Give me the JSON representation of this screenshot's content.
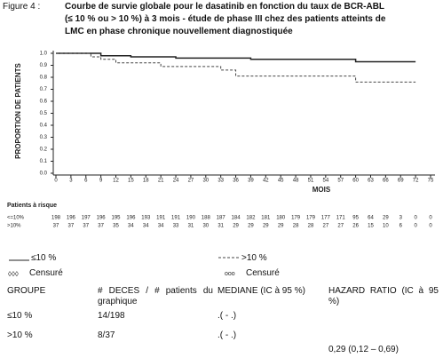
{
  "figure": {
    "label": "Figure 4 :",
    "caption": [
      "Courbe de survie globale pour le dasatinib en fonction du taux de BCR-ABL",
      "(≤ 10 % ou > 10 %) à 3 mois - étude de phase III chez des patients atteints de",
      "LMC en phase chronique nouvellement diagnostiquée"
    ]
  },
  "chart_data": {
    "type": "line",
    "x_label": "MOIS",
    "y_label": "PROPORTION DE PATIENTS",
    "xlim": [
      0,
      75
    ],
    "xticks": [
      0,
      3,
      6,
      9,
      12,
      15,
      18,
      21,
      24,
      27,
      30,
      33,
      36,
      39,
      42,
      45,
      48,
      51,
      54,
      57,
      60,
      63,
      66,
      69,
      72,
      75
    ],
    "ylim": [
      0,
      1
    ],
    "yticks": [
      {
        "value": 0,
        "label": "0.0"
      },
      0.1,
      0.2,
      0.3,
      0.4,
      0.5,
      0.6,
      0.7,
      0.8,
      0.9,
      {
        "value": 1,
        "label": "1.0"
      }
    ],
    "series": [
      {
        "name": "≤10 %",
        "color": "#222222",
        "x": [
          0,
          9,
          9,
          15,
          15,
          24,
          24,
          39,
          39,
          60,
          60,
          72
        ],
        "values": [
          1,
          1,
          0.98,
          0.98,
          0.97,
          0.97,
          0.96,
          0.96,
          0.95,
          0.95,
          0.93,
          0.93
        ]
      },
      {
        "name": ">10 %",
        "color": "#444444",
        "x": [
          0,
          7,
          7,
          9,
          9,
          12,
          12,
          21,
          21,
          33,
          33,
          36,
          36,
          60,
          60,
          72
        ],
        "values": [
          1,
          1,
          0.97,
          0.97,
          0.95,
          0.95,
          0.92,
          0.92,
          0.89,
          0.89,
          0.86,
          0.86,
          0.81,
          0.81,
          0.76,
          0.76
        ]
      }
    ]
  },
  "risk_table": {
    "title": "Patients à risque",
    "rows": [
      {
        "group": "<=10%",
        "counts": [
          198,
          196,
          197,
          196,
          195,
          196,
          193,
          191,
          191,
          190,
          188,
          187,
          184,
          182,
          181,
          180,
          179,
          179,
          177,
          171,
          95,
          64,
          29,
          3,
          0,
          0
        ]
      },
      {
        "group": ">10%",
        "counts": [
          37,
          37,
          37,
          37,
          35,
          34,
          34,
          34,
          33,
          31,
          30,
          31,
          29,
          29,
          29,
          29,
          28,
          28,
          27,
          27,
          26,
          15,
          10,
          6,
          0,
          0
        ]
      }
    ]
  },
  "legend": {
    "censored": [
      "Censuré",
      "Censuré"
    ]
  },
  "table": {
    "header": [
      "GROUPE",
      "# DECES / # patients du graphique",
      "MEDIANE (IC à 95 %)",
      "HAZARD RATIO (IC à 95 %)"
    ],
    "rows": [
      [
        "≤10 %",
        "14/198",
        ".( - .)"
      ],
      [
        ">10 %",
        "8/37",
        ".( - .)"
      ]
    ],
    "hazard_ratio": "0,29 (0,12 – 0,69)"
  }
}
